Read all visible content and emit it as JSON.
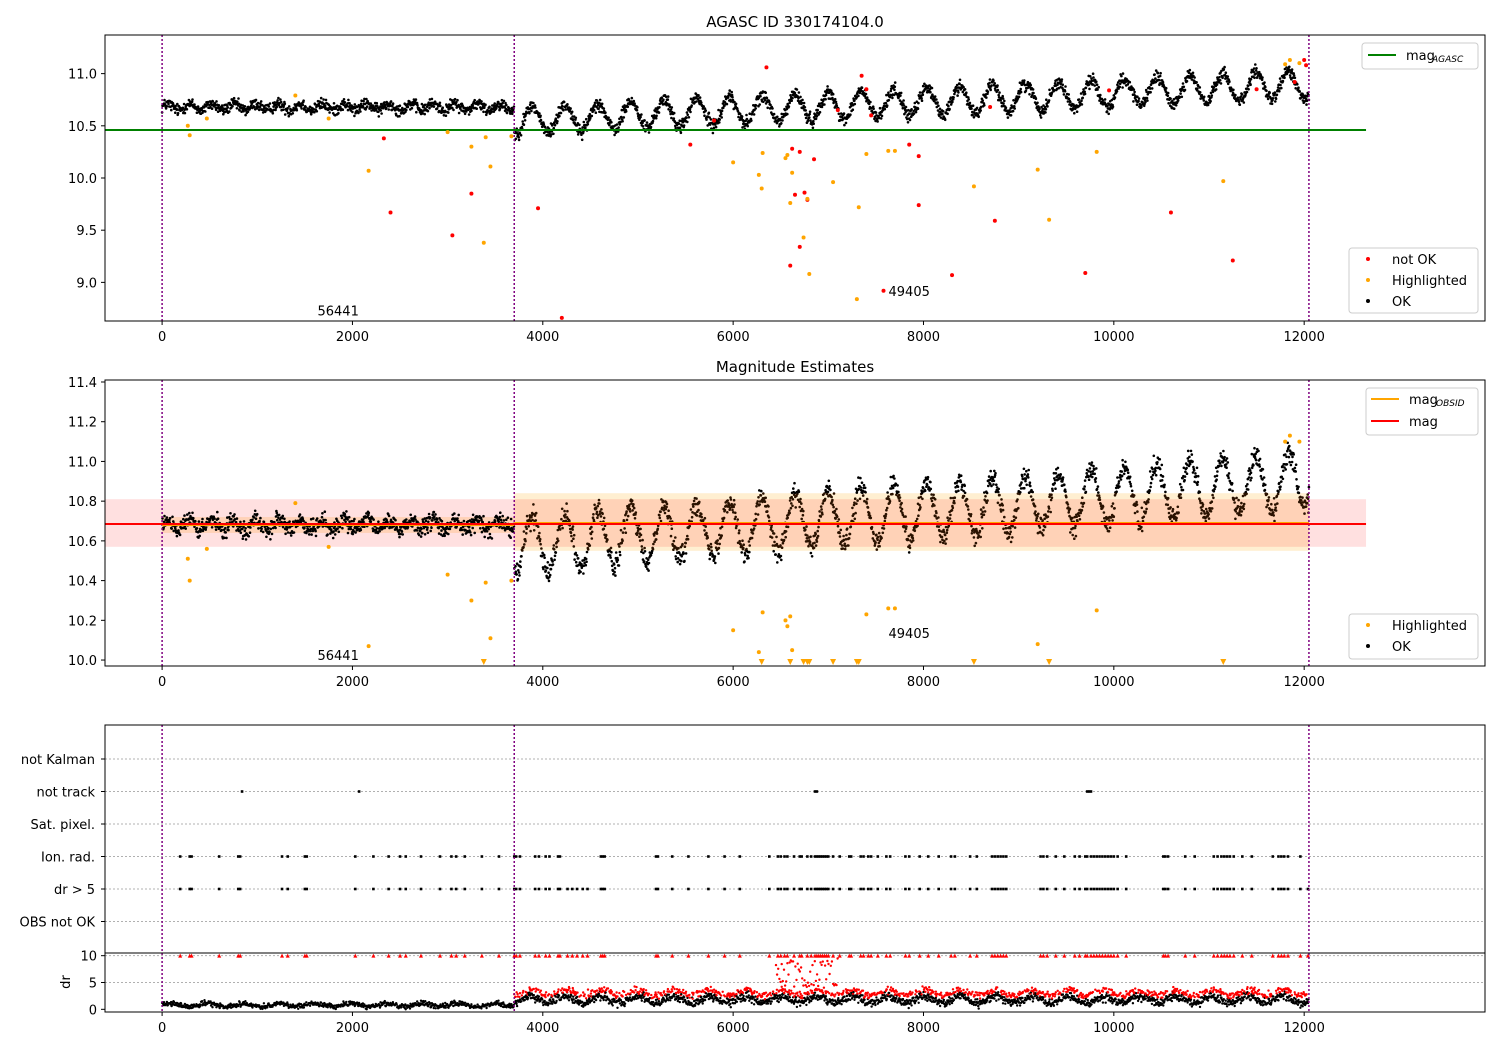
{
  "chart_data": [
    {
      "id": "top",
      "type": "scatter",
      "title": "AGASC ID 330174104.0",
      "xlim": [
        -600,
        13900
      ],
      "ylim": [
        8.63,
        11.37
      ],
      "xticks": [
        0,
        2000,
        4000,
        6000,
        8000,
        10000,
        12000
      ],
      "yticks": [
        9.0,
        9.5,
        10.0,
        10.5,
        11.0
      ],
      "ytick_labels": [
        "9.0",
        "9.5",
        "10.0",
        "10.5",
        "11.0"
      ],
      "obs_boundaries": [
        0,
        3700,
        12050
      ],
      "annotations": [
        {
          "text": "56441",
          "x": 1850,
          "y": 8.72
        },
        {
          "text": "49405",
          "x": 7850,
          "y": 8.91
        }
      ],
      "lines": [
        {
          "name": "mag_AGASC",
          "label": "mag",
          "sub": "AGASC",
          "y": 10.46,
          "x": [
            -600,
            12650
          ],
          "color": "#008000"
        }
      ],
      "legend_lines_pos": "top-right",
      "legend_points_pos": "bottom-right",
      "legend_points": [
        {
          "label": "not OK",
          "color": "#ff0000"
        },
        {
          "label": "Highlighted",
          "color": "#ffa500"
        },
        {
          "label": "OK",
          "color": "#000000"
        }
      ],
      "series": [
        {
          "name": "not OK",
          "color": "#ff0000",
          "points": [
            [
              2330,
              10.38
            ],
            [
              2400,
              9.67
            ],
            [
              3050,
              9.45
            ],
            [
              3250,
              9.85
            ],
            [
              3950,
              9.71
            ],
            [
              4200,
              8.66
            ],
            [
              5550,
              10.32
            ],
            [
              5800,
              10.55
            ],
            [
              6350,
              11.06
            ],
            [
              6600,
              9.16
            ],
            [
              6650,
              9.84
            ],
            [
              6700,
              9.34
            ],
            [
              6750,
              9.86
            ],
            [
              6780,
              9.79
            ],
            [
              6850,
              10.18
            ],
            [
              7100,
              10.65
            ],
            [
              7350,
              10.98
            ],
            [
              7400,
              10.85
            ],
            [
              7580,
              8.92
            ],
            [
              7850,
              10.32
            ],
            [
              7950,
              10.21
            ],
            [
              7950,
              9.74
            ],
            [
              8300,
              9.07
            ],
            [
              8700,
              10.68
            ],
            [
              8750,
              9.59
            ],
            [
              9700,
              9.09
            ],
            [
              9950,
              10.84
            ],
            [
              10600,
              9.67
            ],
            [
              11250,
              9.21
            ],
            [
              11500,
              10.85
            ],
            [
              11900,
              10.92
            ],
            [
              12000,
              11.13
            ],
            [
              12020,
              11.08
            ],
            [
              6620,
              10.28
            ],
            [
              6700,
              10.25
            ],
            [
              7450,
              10.6
            ]
          ]
        },
        {
          "name": "Highlighted",
          "color": "#ffa500",
          "points": [
            [
              270,
              10.5
            ],
            [
              290,
              10.41
            ],
            [
              470,
              10.57
            ],
            [
              1400,
              10.79
            ],
            [
              1750,
              10.57
            ],
            [
              2170,
              10.07
            ],
            [
              3000,
              10.44
            ],
            [
              3250,
              10.3
            ],
            [
              3380,
              9.38
            ],
            [
              3400,
              10.39
            ],
            [
              3450,
              10.11
            ],
            [
              3670,
              10.4
            ],
            [
              6000,
              10.15
            ],
            [
              6300,
              9.9
            ],
            [
              6310,
              10.24
            ],
            [
              6270,
              10.03
            ],
            [
              6550,
              10.19
            ],
            [
              6570,
              10.22
            ],
            [
              6600,
              9.76
            ],
            [
              6620,
              10.05
            ],
            [
              6740,
              9.43
            ],
            [
              6800,
              9.08
            ],
            [
              6780,
              9.8
            ],
            [
              7050,
              9.96
            ],
            [
              7300,
              8.84
            ],
            [
              7320,
              9.72
            ],
            [
              7400,
              10.23
            ],
            [
              7630,
              10.26
            ],
            [
              7700,
              10.26
            ],
            [
              8530,
              9.92
            ],
            [
              9200,
              10.08
            ],
            [
              9320,
              9.6
            ],
            [
              9820,
              10.25
            ],
            [
              11150,
              9.97
            ],
            [
              11800,
              11.09
            ],
            [
              11850,
              11.13
            ],
            [
              11950,
              11.1
            ]
          ]
        }
      ]
    },
    {
      "id": "mid",
      "type": "scatter",
      "title": "Magnitude Estimates",
      "xlim": [
        -600,
        13900
      ],
      "ylim": [
        9.97,
        11.41
      ],
      "xticks": [
        0,
        2000,
        4000,
        6000,
        8000,
        10000,
        12000
      ],
      "yticks": [
        10.0,
        10.2,
        10.4,
        10.6,
        10.8,
        11.0,
        11.2,
        11.4
      ],
      "ytick_labels": [
        "10.0",
        "10.2",
        "10.4",
        "10.6",
        "10.8",
        "11.0",
        "11.2",
        "11.4"
      ],
      "obs_boundaries": [
        0,
        3700,
        12050
      ],
      "annotations": [
        {
          "text": "56441",
          "x": 1850,
          "y": 10.02
        },
        {
          "text": "49405",
          "x": 7850,
          "y": 10.13
        }
      ],
      "lines": [
        {
          "name": "mag_OBSID_1",
          "label": "mag",
          "sub": "OBSID",
          "y": 10.68,
          "x": [
            0,
            3700
          ],
          "color": "#ffa500",
          "band": [
            10.64,
            10.72
          ]
        },
        {
          "name": "mag_OBSID_2",
          "label": "mag",
          "sub": "OBSID",
          "y": 10.69,
          "x": [
            3700,
            12050
          ],
          "color": "#ffa500",
          "band": [
            10.55,
            10.84
          ]
        },
        {
          "name": "mag",
          "label": "mag",
          "sub": "",
          "y": 10.685,
          "x": [
            -600,
            12650
          ],
          "color": "#ff0000",
          "band": [
            10.57,
            10.81
          ]
        }
      ],
      "legend_lines_pos": "top-right",
      "legend_points_pos": "bottom-right",
      "legend_points": [
        {
          "label": "Highlighted",
          "color": "#ffa500"
        },
        {
          "label": "OK",
          "color": "#000000"
        }
      ],
      "series": [
        {
          "name": "Highlighted",
          "color": "#ffa500",
          "points": [
            [
              270,
              10.51
            ],
            [
              290,
              10.4
            ],
            [
              470,
              10.56
            ],
            [
              1400,
              10.79
            ],
            [
              1750,
              10.57
            ],
            [
              2170,
              10.07
            ],
            [
              3000,
              10.43
            ],
            [
              3250,
              10.3
            ],
            [
              3400,
              10.39
            ],
            [
              3450,
              10.11
            ],
            [
              3670,
              10.4
            ],
            [
              6000,
              10.15
            ],
            [
              6310,
              10.24
            ],
            [
              6270,
              10.04
            ],
            [
              6550,
              10.2
            ],
            [
              6570,
              10.17
            ],
            [
              6600,
              10.22
            ],
            [
              6620,
              10.05
            ],
            [
              7400,
              10.23
            ],
            [
              7630,
              10.26
            ],
            [
              7700,
              10.26
            ],
            [
              9200,
              10.08
            ],
            [
              9820,
              10.25
            ],
            [
              11800,
              11.1
            ],
            [
              11850,
              11.13
            ],
            [
              11950,
              11.1
            ]
          ]
        },
        {
          "name": "below-range",
          "color": "#ffa500",
          "marker": "triangle-down",
          "points": [
            [
              3380,
              9.99
            ],
            [
              6300,
              9.99
            ],
            [
              6600,
              9.99
            ],
            [
              6740,
              9.99
            ],
            [
              6780,
              9.99
            ],
            [
              6800,
              9.99
            ],
            [
              7050,
              9.99
            ],
            [
              7300,
              9.99
            ],
            [
              7320,
              9.99
            ],
            [
              8530,
              9.99
            ],
            [
              9320,
              9.99
            ],
            [
              11150,
              9.99
            ]
          ]
        }
      ]
    },
    {
      "id": "flags",
      "type": "scatter",
      "title": "",
      "xlim": [
        -600,
        13900
      ],
      "categories": [
        "not Kalman",
        "not track",
        "Sat. pixel.",
        "Ion. rad.",
        "dr > 5",
        "OBS not OK"
      ],
      "obs_boundaries": [
        0,
        3700,
        12050
      ],
      "series": [
        {
          "name": "not track",
          "color": "#000000",
          "x": [
            840,
            2070,
            6860,
            6880,
            9720,
            9740,
            9760
          ]
        },
        {
          "name": "Ion. rad.",
          "color": "#000000",
          "x": [
            190,
            290,
            310,
            600,
            800,
            820,
            1260,
            1320,
            1500,
            1520,
            2030,
            2220,
            2380,
            2500,
            2560,
            2720,
            2920,
            3040,
            3090,
            3180,
            3360,
            3540,
            3700,
            3720,
            3760,
            3920,
            3960,
            4030,
            4070,
            4160,
            4180,
            4610,
            4630,
            4650,
            5190,
            5210,
            5360,
            5530,
            5740,
            5910,
            6070,
            6380,
            6470,
            6500,
            6540,
            6570,
            6640,
            6700,
            6720,
            6780,
            6820,
            6860,
            6880,
            6900,
            6920,
            6940,
            6960,
            6980,
            7000,
            7050,
            7120,
            7220,
            7240,
            7340,
            7370,
            7420,
            7450,
            7520,
            7610,
            7650,
            7810,
            7850,
            7960,
            8050,
            8160,
            8290,
            8330,
            8490,
            8560,
            8720,
            8750,
            8780,
            8810,
            8840,
            8870,
            9230,
            9260,
            9300,
            9390,
            9480,
            9590,
            9640,
            9700,
            9720,
            9760,
            9790,
            9820,
            9850,
            9880,
            9910,
            9940,
            9970,
            10000,
            10040,
            10130,
            10520,
            10540,
            10570,
            10750,
            10850,
            11050,
            11090,
            11130,
            11160,
            11190,
            11220,
            11260,
            11350,
            11450,
            11670,
            11730,
            11760,
            11790,
            11830,
            11960
          ]
        },
        {
          "name": "dr > 5",
          "color": "#000000",
          "x": [
            190,
            290,
            310,
            600,
            800,
            820,
            1260,
            1320,
            1500,
            1520,
            2030,
            2220,
            2380,
            2500,
            2560,
            2720,
            2920,
            3040,
            3090,
            3180,
            3360,
            3540,
            3700,
            3720,
            3760,
            3920,
            3960,
            4030,
            4070,
            4160,
            4180,
            4260,
            4310,
            4360,
            4420,
            4470,
            4610,
            4630,
            4650,
            5190,
            5210,
            5360,
            5530,
            5740,
            5910,
            6070,
            6380,
            6470,
            6500,
            6540,
            6570,
            6640,
            6700,
            6720,
            6780,
            6820,
            6860,
            6880,
            6900,
            6920,
            6940,
            6960,
            6980,
            7000,
            7050,
            7120,
            7220,
            7240,
            7340,
            7370,
            7420,
            7450,
            7520,
            7610,
            7650,
            7810,
            7850,
            7960,
            8050,
            8160,
            8290,
            8330,
            8490,
            8560,
            8720,
            8750,
            8780,
            8810,
            8840,
            8870,
            9230,
            9260,
            9300,
            9390,
            9480,
            9590,
            9640,
            9700,
            9720,
            9760,
            9790,
            9820,
            9850,
            9880,
            9910,
            9940,
            9970,
            10000,
            10040,
            10130,
            10520,
            10540,
            10570,
            10750,
            10850,
            11050,
            11090,
            11130,
            11160,
            11190,
            11220,
            11260,
            11350,
            11450,
            11670,
            11730,
            11760,
            11790,
            11830,
            11960,
            12040
          ]
        }
      ]
    },
    {
      "id": "dr",
      "type": "scatter",
      "title": "",
      "xlim": [
        -600,
        13900
      ],
      "ylim": [
        -0.5,
        10.5
      ],
      "xticks": [
        0,
        2000,
        4000,
        6000,
        8000,
        10000,
        12000
      ],
      "yticks": [
        0,
        5,
        10
      ],
      "ytick_labels": [
        "0",
        "5",
        "10"
      ],
      "ylabel": "dr",
      "obs_boundaries": [
        0,
        3700,
        12050
      ],
      "threshold": 5,
      "series": [
        {
          "name": "dr OK",
          "color": "#000000",
          "segments": [
            [
              0,
              3700,
              0.8
            ],
            [
              3700,
              12050,
              1.8
            ]
          ]
        },
        {
          "name": "dr large",
          "color": "#ff0000",
          "segments": [
            [
              3700,
              12050,
              3.2
            ]
          ]
        },
        {
          "name": "dr clipped",
          "color": "#ff0000",
          "marker": "triangle-up",
          "y": 10,
          "x_from_series": "dr > 5"
        }
      ]
    }
  ]
}
